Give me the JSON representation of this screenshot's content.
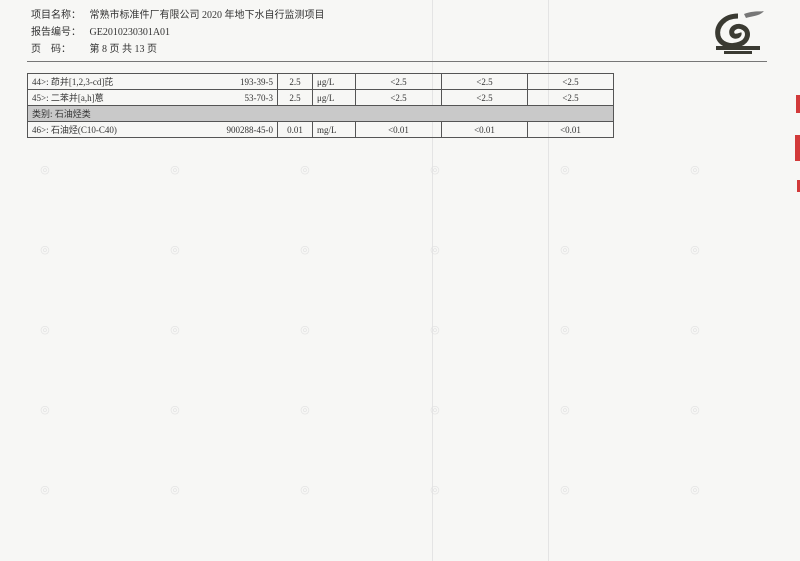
{
  "header": {
    "project_label": "项目名称：",
    "project_value": "常熟市标准件厂有限公司 2020 年地下水自行监测项目",
    "report_label": "报告编号：",
    "report_value": "GE2010230301A01",
    "page_label": "页　码：",
    "page_value": "第 8 页 共 13 页"
  },
  "table": {
    "rows": [
      {
        "type": "item",
        "name": "44>: 茚并[1,2,3-cd]芘",
        "cas": "193-39-5",
        "limit": "2.5",
        "unit": "μg/L",
        "r1": "<2.5",
        "r2": "<2.5",
        "r3": "<2.5"
      },
      {
        "type": "item",
        "name": "45>: 二苯并[a,h]蒽",
        "cas": "53-70-3",
        "limit": "2.5",
        "unit": "μg/L",
        "r1": "<2.5",
        "r2": "<2.5",
        "r3": "<2.5"
      },
      {
        "type": "category",
        "name": "类别: 石油烃类"
      },
      {
        "type": "item",
        "name": "46>: 石油烃(C10-C40)",
        "cas": "900288-45-0",
        "limit": "0.01",
        "unit": "mg/L",
        "r1": "<0.01",
        "r2": "<0.01",
        "r3": "<0.01"
      }
    ]
  },
  "watermark_text": "绿科检测 GREEN EARTH TESTING",
  "colors": {
    "category_bg": "#c9c9c9",
    "logo": "#3a3a32",
    "stamp": "#d23a3a"
  }
}
